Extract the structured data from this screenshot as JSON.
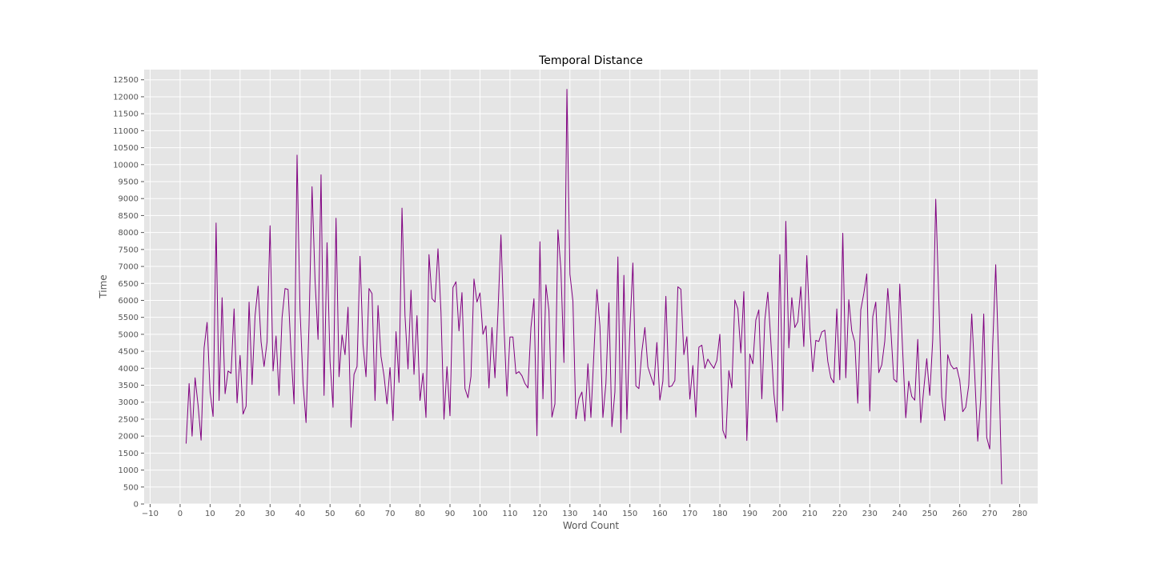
{
  "chart_data": {
    "type": "line",
    "title": "Temporal Distance",
    "xlabel": "Word Count",
    "ylabel": "Time",
    "xlim": [
      -12,
      286
    ],
    "ylim": [
      0,
      12800
    ],
    "xticks": [
      -10,
      0,
      10,
      20,
      30,
      40,
      50,
      60,
      70,
      80,
      90,
      100,
      110,
      120,
      130,
      140,
      150,
      160,
      170,
      180,
      190,
      200,
      210,
      220,
      230,
      240,
      250,
      260,
      270,
      280
    ],
    "yticks": [
      0,
      500,
      1000,
      1500,
      2000,
      2500,
      3000,
      3500,
      4000,
      4500,
      5000,
      5500,
      6000,
      6500,
      7000,
      7500,
      8000,
      8500,
      9000,
      9500,
      10000,
      10500,
      11000,
      11500,
      12000,
      12500
    ],
    "grid": true,
    "background": "#e5e5e5",
    "grid_color": "#ffffff",
    "series": [
      {
        "color": "#800080",
        "x": [
          2,
          3,
          4,
          5,
          6,
          7,
          8,
          9,
          10,
          11,
          12,
          13,
          14,
          15,
          16,
          17,
          18,
          19,
          20,
          21,
          22,
          23,
          24,
          25,
          26,
          27,
          28,
          29,
          30,
          31,
          32,
          33,
          34,
          35,
          36,
          37,
          38,
          39,
          40,
          41,
          42,
          43,
          44,
          45,
          46,
          47,
          48,
          49,
          50,
          51,
          52,
          53,
          54,
          55,
          56,
          57,
          58,
          59,
          60,
          61,
          62,
          63,
          64,
          65,
          66,
          67,
          68,
          69,
          70,
          71,
          72,
          73,
          74,
          75,
          76,
          77,
          78,
          79,
          80,
          81,
          82,
          83,
          84,
          85,
          86,
          87,
          88,
          89,
          90,
          91,
          92,
          93,
          94,
          95,
          96,
          97,
          98,
          99,
          100,
          101,
          102,
          103,
          104,
          105,
          106,
          107,
          108,
          109,
          110,
          111,
          112,
          113,
          114,
          115,
          116,
          117,
          118,
          119,
          120,
          121,
          122,
          123,
          124,
          125,
          126,
          127,
          128,
          129,
          130,
          131,
          132,
          133,
          134,
          135,
          136,
          137,
          138,
          139,
          140,
          141,
          142,
          143,
          144,
          145,
          146,
          147,
          148,
          149,
          150,
          151,
          152,
          153,
          154,
          155,
          156,
          157,
          158,
          159,
          160,
          161,
          162,
          163,
          164,
          165,
          166,
          167,
          168,
          169,
          170,
          171,
          172,
          173,
          174,
          175,
          176,
          177,
          178,
          179,
          180,
          181,
          182,
          183,
          184,
          185,
          186,
          187,
          188,
          189,
          190,
          191,
          192,
          193,
          194,
          195,
          196,
          197,
          198,
          199,
          200,
          201,
          202,
          203,
          204,
          205,
          206,
          207,
          208,
          209,
          210,
          211,
          212,
          213,
          214,
          215,
          216,
          217,
          218,
          219,
          220,
          221,
          222,
          223,
          224,
          225,
          226,
          227,
          228,
          229,
          230,
          231,
          232,
          233,
          234,
          235,
          236,
          237,
          238,
          239,
          240,
          241,
          242,
          243,
          244,
          245,
          246,
          247,
          248,
          249,
          250,
          251,
          252,
          253,
          254,
          255,
          256,
          257,
          258,
          259,
          260,
          261,
          262,
          263,
          264,
          265,
          266,
          267,
          268,
          269,
          270,
          271,
          272,
          273,
          274
        ],
        "y": [
          1780,
          3550,
          2000,
          3720,
          2900,
          1880,
          4600,
          5350,
          3300,
          2580,
          8280,
          3050,
          6080,
          3250,
          3920,
          3850,
          5750,
          2980,
          4380,
          2650,
          2880,
          5950,
          3520,
          5550,
          6420,
          4780,
          4050,
          4780,
          8200,
          3920,
          4950,
          3200,
          5500,
          6350,
          6320,
          4450,
          2950,
          10280,
          5700,
          3550,
          2400,
          5300,
          9350,
          6600,
          4850,
          9700,
          3200,
          7700,
          4200,
          2850,
          8420,
          3750,
          4980,
          4400,
          5800,
          2260,
          3820,
          4050,
          7300,
          4700,
          3750,
          6350,
          6200,
          3050,
          5850,
          4350,
          3780,
          2950,
          4020,
          2460,
          5080,
          3580,
          8720,
          5550,
          3980,
          6300,
          3820,
          5550,
          3050,
          3850,
          2550,
          7350,
          6050,
          5950,
          7520,
          5650,
          2500,
          4050,
          2600,
          6380,
          6550,
          5100,
          6230,
          3400,
          3130,
          3760,
          6630,
          5950,
          6220,
          5000,
          5250,
          3420,
          5200,
          3720,
          5650,
          7930,
          5250,
          3180,
          4920,
          4920,
          3840,
          3900,
          3780,
          3550,
          3420,
          5200,
          6050,
          2010,
          7730,
          3100,
          6460,
          5700,
          2560,
          2950,
          8080,
          6900,
          4170,
          12220,
          6770,
          5980,
          2510,
          3100,
          3300,
          2450,
          4130,
          2550,
          4450,
          6320,
          5250,
          2550,
          3550,
          5930,
          2280,
          3300,
          7280,
          2100,
          6740,
          2500,
          5150,
          7100,
          3480,
          3400,
          4500,
          5200,
          4040,
          3760,
          3500,
          4760,
          3060,
          3620,
          6120,
          3450,
          3480,
          3640,
          6400,
          6330,
          4400,
          4930,
          3090,
          4080,
          2560,
          4620,
          4680,
          4000,
          4270,
          4120,
          4000,
          4230,
          5000,
          2170,
          1930,
          3930,
          3420,
          6010,
          5750,
          4450,
          6260,
          1870,
          4420,
          4130,
          5420,
          5720,
          3100,
          5420,
          6240,
          4800,
          3270,
          2410,
          7350,
          2750,
          8330,
          4600,
          6080,
          5200,
          5370,
          6400,
          4640,
          7320,
          5200,
          3900,
          4820,
          4790,
          5070,
          5120,
          4200,
          3720,
          3570,
          5750,
          3660,
          7980,
          3720,
          6020,
          5100,
          4770,
          2970,
          5720,
          6200,
          6780,
          2740,
          5520,
          5950,
          3870,
          4100,
          4800,
          6350,
          5170,
          3680,
          3590,
          6480,
          4450,
          2540,
          3620,
          3170,
          3060,
          4850,
          2400,
          3380,
          4280,
          3200,
          4850,
          8980,
          6100,
          3150,
          2460,
          4400,
          4100,
          3980,
          4020,
          3650,
          2720,
          2850,
          3500,
          5600,
          3800,
          1850,
          3100,
          5600,
          1960,
          1620,
          4700,
          7050,
          4200,
          580
        ]
      }
    ]
  }
}
